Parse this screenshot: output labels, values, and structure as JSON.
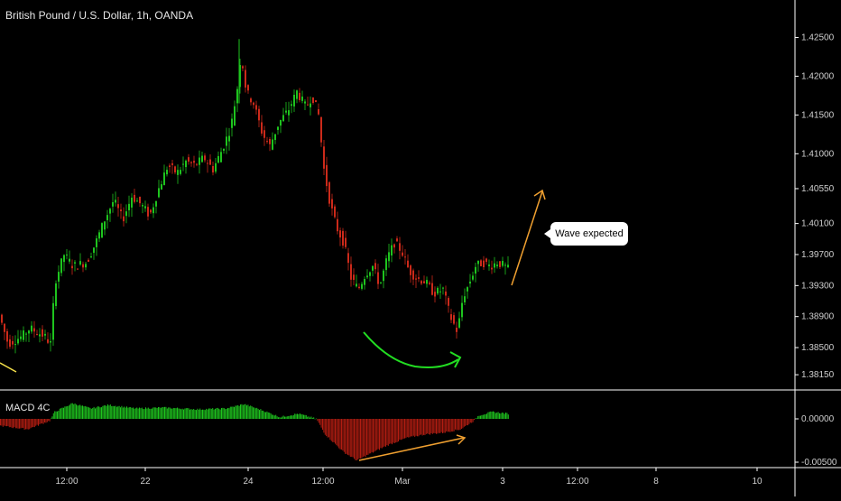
{
  "header": {
    "title": "British Pound / U.S. Dollar, 1h, OANDA"
  },
  "macd": {
    "label": "MACD 4C"
  },
  "callout": {
    "text": "Wave expected"
  },
  "price_axis": {
    "ticks": [
      1.425,
      1.42,
      1.415,
      1.41,
      1.4055,
      1.401,
      1.397,
      1.393,
      1.389,
      1.385,
      1.3815
    ],
    "labels": [
      "1.42500",
      "1.42000",
      "1.41500",
      "1.41000",
      "1.40550",
      "1.40100",
      "1.39700",
      "1.39300",
      "1.38900",
      "1.38500",
      "1.38150"
    ]
  },
  "macd_axis": {
    "ticks": [
      0,
      -0.005
    ],
    "labels": [
      "0.00000",
      "-0.00500"
    ]
  },
  "time_axis": {
    "labels": [
      "12:00",
      "22",
      "24",
      "12:00",
      "Mar",
      "3",
      "12:00",
      "8",
      "10"
    ]
  },
  "colors": {
    "up": "#1ec41e",
    "down": "#cc2a1a",
    "macd_pos": "#1ec41e",
    "macd_neg": "#b21d12",
    "arrow_orange": "#f0a030",
    "arrow_green": "#22dd22",
    "grid_line": "#ffffff"
  },
  "chart_data": {
    "type": "candlestick",
    "title": "British Pound / U.S. Dollar, 1h, OANDA",
    "ylim": [
      1.38,
      1.4275
    ],
    "close_path": [
      [
        0,
        1.3885
      ],
      [
        8,
        1.3855
      ],
      [
        16,
        1.386
      ],
      [
        24,
        1.3865
      ],
      [
        32,
        1.3875
      ],
      [
        40,
        1.387
      ],
      [
        48,
        1.3865
      ],
      [
        55,
        1.3855
      ],
      [
        60,
        1.3935
      ],
      [
        70,
        1.397
      ],
      [
        80,
        1.3955
      ],
      [
        95,
        1.396
      ],
      [
        105,
        1.3985
      ],
      [
        115,
        1.4015
      ],
      [
        125,
        1.404
      ],
      [
        135,
        1.4015
      ],
      [
        145,
        1.4045
      ],
      [
        155,
        1.4035
      ],
      [
        165,
        1.402
      ],
      [
        175,
        1.4055
      ],
      [
        185,
        1.4085
      ],
      [
        195,
        1.4075
      ],
      [
        205,
        1.409
      ],
      [
        215,
        1.4085
      ],
      [
        225,
        1.4095
      ],
      [
        235,
        1.408
      ],
      [
        245,
        1.4105
      ],
      [
        255,
        1.4135
      ],
      [
        262,
        1.4185
      ],
      [
        266,
        1.423
      ],
      [
        272,
        1.418
      ],
      [
        280,
        1.4165
      ],
      [
        290,
        1.4125
      ],
      [
        298,
        1.411
      ],
      [
        308,
        1.414
      ],
      [
        318,
        1.4155
      ],
      [
        328,
        1.418
      ],
      [
        338,
        1.416
      ],
      [
        345,
        1.4175
      ],
      [
        352,
        1.415
      ],
      [
        358,
        1.408
      ],
      [
        365,
        1.4035
      ],
      [
        372,
        1.4005
      ],
      [
        380,
        1.3985
      ],
      [
        388,
        1.394
      ],
      [
        396,
        1.3925
      ],
      [
        404,
        1.3945
      ],
      [
        412,
        1.3955
      ],
      [
        420,
        1.393
      ],
      [
        428,
        1.3965
      ],
      [
        436,
        1.3985
      ],
      [
        444,
        1.3975
      ],
      [
        452,
        1.395
      ],
      [
        460,
        1.394
      ],
      [
        470,
        1.3935
      ],
      [
        480,
        1.392
      ],
      [
        490,
        1.3925
      ],
      [
        498,
        1.389
      ],
      [
        506,
        1.387
      ],
      [
        512,
        1.3915
      ],
      [
        518,
        1.393
      ],
      [
        526,
        1.3955
      ],
      [
        534,
        1.396
      ],
      [
        542,
        1.3955
      ],
      [
        550,
        1.396
      ],
      [
        558,
        1.3955
      ],
      [
        563,
        1.395
      ]
    ],
    "macd_path": [
      [
        0,
        -0.0008
      ],
      [
        30,
        -0.0012
      ],
      [
        55,
        -0.0002
      ],
      [
        60,
        0.0008
      ],
      [
        80,
        0.0018
      ],
      [
        100,
        0.0012
      ],
      [
        120,
        0.0016
      ],
      [
        150,
        0.0012
      ],
      [
        180,
        0.0013
      ],
      [
        220,
        0.0011
      ],
      [
        250,
        0.0012
      ],
      [
        270,
        0.0017
      ],
      [
        290,
        0.001
      ],
      [
        310,
        0.0002
      ],
      [
        330,
        0.0006
      ],
      [
        350,
        0.0
      ],
      [
        360,
        -0.0018
      ],
      [
        380,
        -0.0038
      ],
      [
        395,
        -0.0048
      ],
      [
        410,
        -0.004
      ],
      [
        430,
        -0.003
      ],
      [
        450,
        -0.0022
      ],
      [
        470,
        -0.0018
      ],
      [
        490,
        -0.0016
      ],
      [
        510,
        -0.0012
      ],
      [
        525,
        -0.0002
      ],
      [
        530,
        0.0004
      ],
      [
        545,
        0.0008
      ],
      [
        563,
        0.0006
      ]
    ],
    "annotations": [
      "Wave expected"
    ]
  }
}
